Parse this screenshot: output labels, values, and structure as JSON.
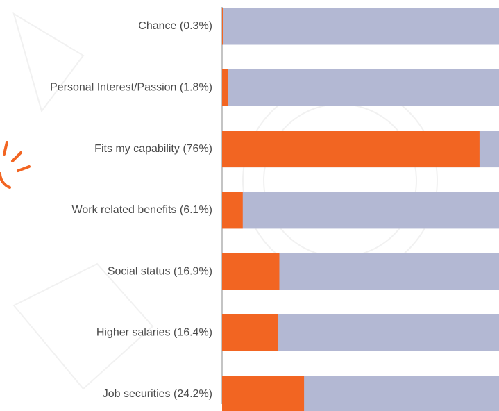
{
  "chart_data": {
    "type": "barh",
    "categories": [
      "Chance (0.3%)",
      "Personal Interest/Passion (1.8%)",
      "Fits my capability (76%)",
      "Work related benefits (6.1%)",
      "Social status (16.9%)",
      "Higher salaries (16.4%)",
      "Job securities (24.2%)"
    ],
    "values": [
      0.3,
      1.8,
      76,
      6.1,
      16.9,
      16.4,
      24.2
    ],
    "color": "#f26522",
    "track_color": "#b3b8d3",
    "xlim": [
      0,
      100
    ]
  }
}
